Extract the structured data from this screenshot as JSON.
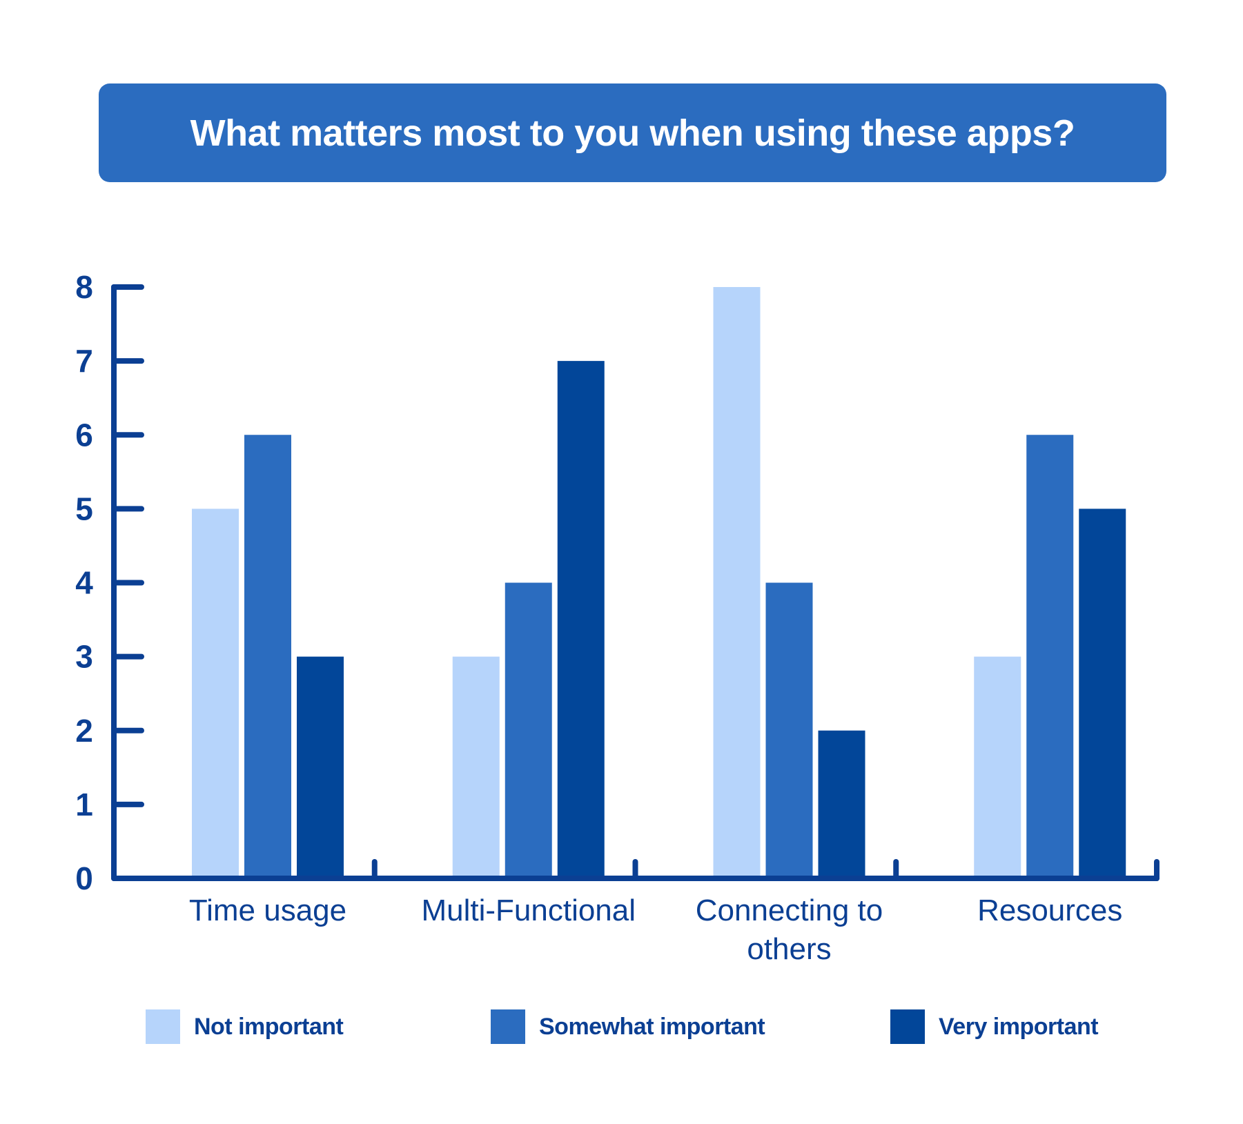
{
  "chart_data": {
    "type": "bar",
    "title": "What matters most to you when using these apps?",
    "categories": [
      "Time usage",
      "Multi-Functional",
      "Connecting to others",
      " Resources"
    ],
    "category_lines": [
      [
        "Time usage"
      ],
      [
        "Multi-Functional"
      ],
      [
        "Connecting to",
        "others"
      ],
      [
        "Resources"
      ]
    ],
    "series": [
      {
        "name": "Not important",
        "values": [
          5,
          3,
          8,
          3
        ],
        "color": "#b6d4fb"
      },
      {
        "name": "Somewhat important",
        "values": [
          6,
          4,
          4,
          6
        ],
        "color": "#2b6cbf"
      },
      {
        "name": "Very important",
        "values": [
          3,
          7,
          2,
          5
        ],
        "color": "#024699"
      }
    ],
    "ylim": [
      0,
      8
    ],
    "yticks": [
      "0",
      "1",
      "2",
      "3",
      "4",
      "5",
      "6",
      "7",
      "8"
    ],
    "xlabel": "",
    "ylabel": "",
    "legend_position": "bottom",
    "colors": {
      "axis": "#0b3f93",
      "text": "#0b3f93",
      "banner": "#2b6cbf",
      "banner_text": "#ffffff"
    }
  }
}
